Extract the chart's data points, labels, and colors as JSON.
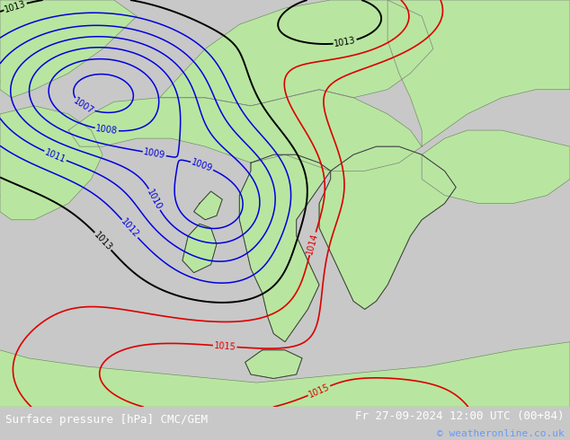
{
  "title_left": "Surface pressure [hPa] CMC/GEM",
  "title_right": "Fr 27-09-2024 12:00 UTC (00+84)",
  "copyright": "© weatheronline.co.uk",
  "land_color": "#b8e6a0",
  "sea_color": "#c8c8c8",
  "border_color": "#808080",
  "contour_color_blue": "#0000dd",
  "contour_color_black": "#000000",
  "contour_color_red": "#dd0000",
  "footer_bg": "#000000",
  "label_fontsize": 7,
  "footer_fontsize": 9,
  "figsize": [
    6.34,
    4.9
  ],
  "dpi": 100
}
